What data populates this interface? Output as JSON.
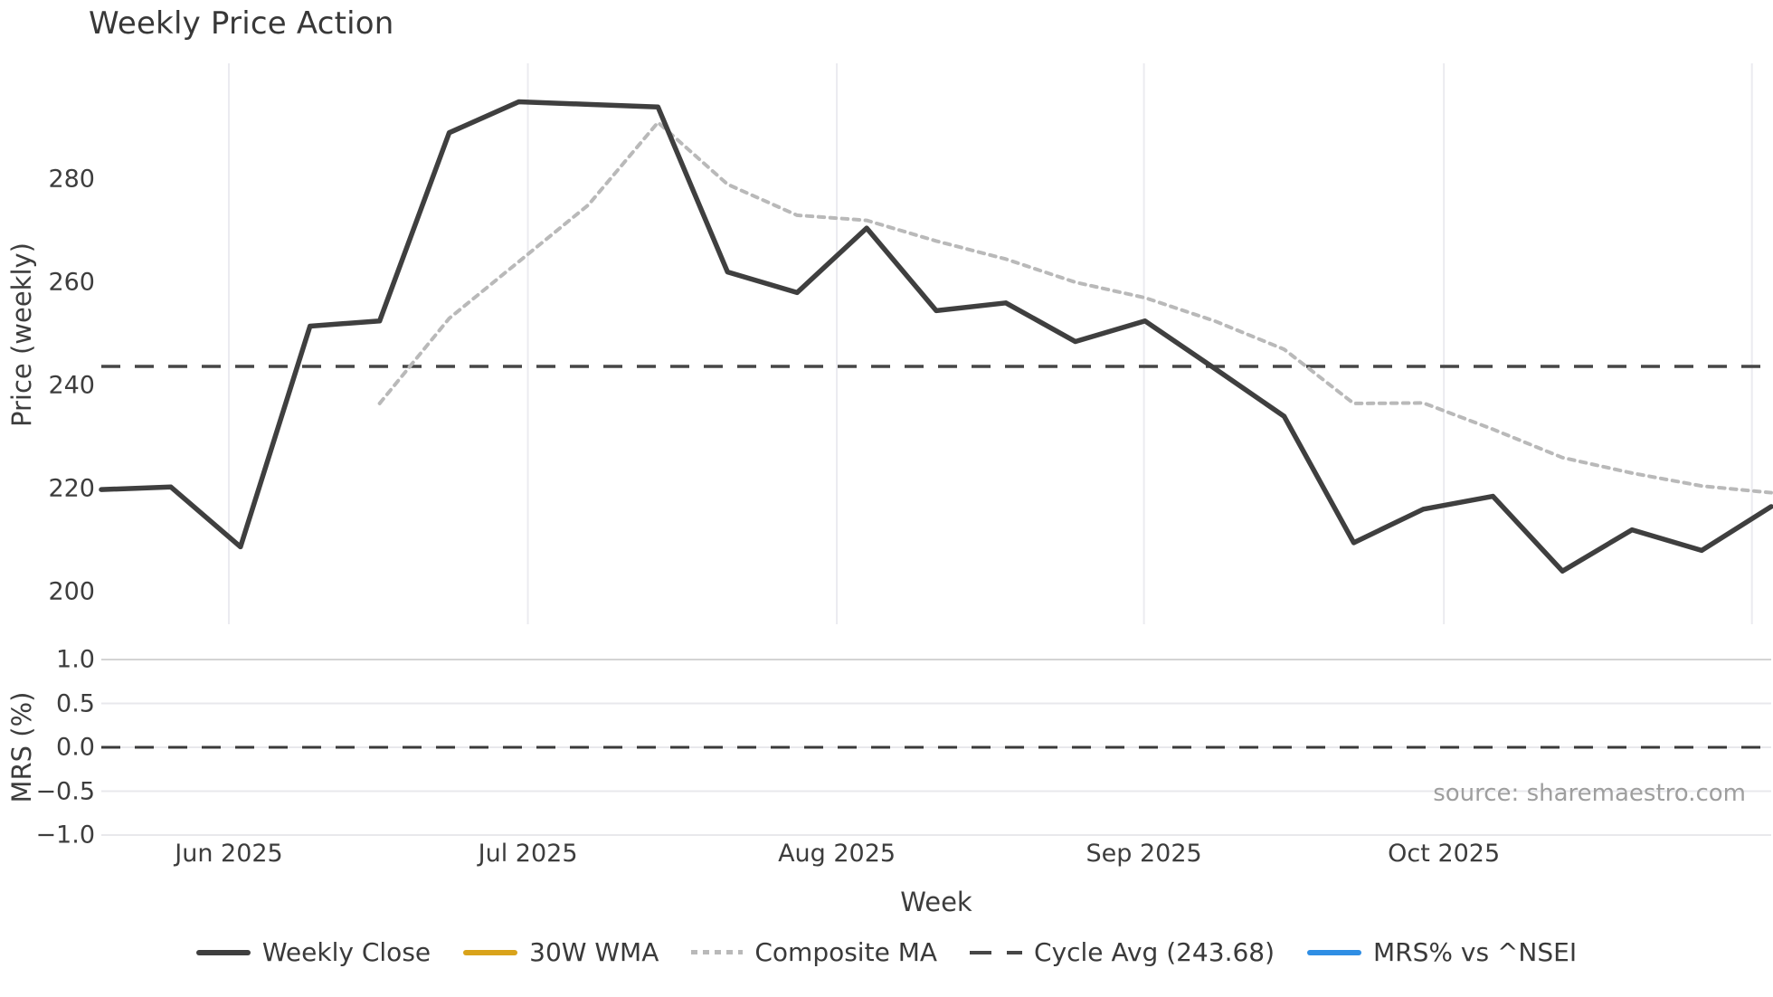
{
  "title": "Weekly Price Action",
  "source_note": "source: sharemaestro.com",
  "colors": {
    "weekly_close": "#3f3f3f",
    "wma_30w": "#d9a31b",
    "composite_ma": "#b9b9b9",
    "cycle_avg": "#464646",
    "mrs_line": "#2f8ee4",
    "grid_vertical": "#ebebf0",
    "grid_horizontal": "#e8e8ec",
    "grid_horizontal_top": "#d4d4d4",
    "tick_text": "#3d3d3d",
    "title_text": "#383838",
    "source_text": "#9e9e9e"
  },
  "legend": [
    {
      "id": "weekly-close",
      "label": "Weekly Close",
      "style": "solid",
      "color": "#3f3f3f"
    },
    {
      "id": "wma-30w",
      "label": "30W WMA",
      "style": "solid",
      "color": "#d9a31b"
    },
    {
      "id": "composite-ma",
      "label": "Composite MA",
      "style": "dotted",
      "color": "#b9b9b9"
    },
    {
      "id": "cycle-avg",
      "label": "Cycle Avg (243.68)",
      "style": "dashed",
      "color": "#464646"
    },
    {
      "id": "mrs-nsei",
      "label": "MRS% vs ^NSEI",
      "style": "solid",
      "color": "#2f8ee4"
    }
  ],
  "chart_data": [
    {
      "type": "line",
      "title": "Weekly Price Action",
      "xlabel": "Week",
      "ylabel": "Price (weekly)",
      "x_unit": "weekly index (25 consecutive weeks, May–Nov 2025)",
      "x": [
        0,
        1,
        2,
        3,
        4,
        5,
        6,
        7,
        8,
        9,
        10,
        11,
        12,
        13,
        14,
        15,
        16,
        17,
        18,
        19,
        20,
        21,
        22,
        23,
        24
      ],
      "x_ticks": [
        {
          "label": "Jun 2025",
          "pos": 1.833
        },
        {
          "label": "Jul 2025",
          "pos": 6.131
        },
        {
          "label": "Aug 2025",
          "pos": 10.571
        },
        {
          "label": "Sep 2025",
          "pos": 14.985
        },
        {
          "label": "Oct 2025",
          "pos": 19.296
        },
        {
          "label": "",
          "pos": 23.723
        }
      ],
      "y_ticks": [
        280,
        260,
        240,
        220,
        200
      ],
      "ylim": [
        193.7,
        302.5
      ],
      "grid": "vertical month gridlines only",
      "legend_position": "bottom-center",
      "series": [
        {
          "name": "Weekly Close",
          "style": "solid",
          "color": "#3f3f3f",
          "values": [
            219.8,
            220.3,
            208.7,
            251.5,
            252.5,
            289,
            295,
            294.5,
            294,
            262,
            258,
            270.5,
            254.5,
            256,
            248.5,
            252.5,
            243.3,
            234,
            209.5,
            216,
            218.5,
            204,
            212,
            208,
            216.5
          ]
        },
        {
          "name": "30W WMA",
          "style": "solid",
          "color": "#d9a31b",
          "values": [],
          "note": "listed in legend, no visible data in plot"
        },
        {
          "name": "Composite MA",
          "style": "dotted",
          "color": "#b9b9b9",
          "values": [
            null,
            null,
            null,
            null,
            236.5,
            253,
            264,
            275,
            291,
            279,
            273,
            272,
            268,
            264.5,
            260,
            257,
            252.5,
            247,
            236.5,
            236.6,
            231.5,
            226,
            223,
            220.5,
            219.2
          ]
        },
        {
          "name": "Cycle Avg (243.68)",
          "style": "dashed",
          "color": "#464646",
          "constant": 243.68
        }
      ]
    },
    {
      "type": "line",
      "ylabel": "MRS (%)",
      "y_ticks": [
        {
          "label": "1.0",
          "value": 1.0
        },
        {
          "label": "0.5",
          "value": 0.5
        },
        {
          "label": "0.0",
          "value": 0.0
        },
        {
          "label": "−0.5",
          "value": -0.5
        },
        {
          "label": "−1.0",
          "value": -1.0
        }
      ],
      "ylim": [
        -1.07,
        1.07
      ],
      "grid": "horizontal gridlines only",
      "zero_line": {
        "style": "dashed",
        "color": "#3a3a3a",
        "value": 0.0
      },
      "series": [
        {
          "name": "MRS% vs ^NSEI",
          "style": "solid",
          "color": "#2f8ee4",
          "visible": false,
          "values": [],
          "note": "legend entry present; no line visibly rendered (flat at 0 under dashed zero line)"
        }
      ]
    }
  ]
}
